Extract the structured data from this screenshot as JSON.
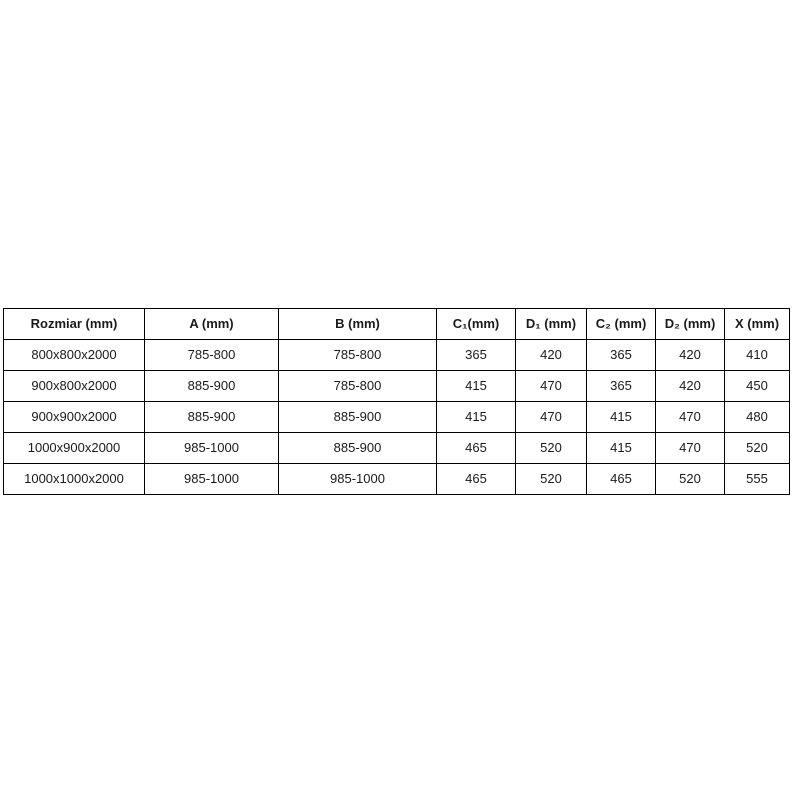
{
  "table": {
    "name": "size-specification-table",
    "headers": [
      "Rozmiar (mm)",
      "A (mm)",
      "B (mm)",
      "C₁(mm)",
      "D₁ (mm)",
      "C₂ (mm)",
      "D₂ (mm)",
      "X (mm)"
    ],
    "rows": [
      [
        "800x800x2000",
        "785-800",
        "785-800",
        "365",
        "420",
        "365",
        "420",
        "410"
      ],
      [
        "900x800x2000",
        "885-900",
        "785-800",
        "415",
        "470",
        "365",
        "420",
        "450"
      ],
      [
        "900x900x2000",
        "885-900",
        "885-900",
        "415",
        "470",
        "415",
        "470",
        "480"
      ],
      [
        "1000x900x2000",
        "985-1000",
        "885-900",
        "465",
        "520",
        "415",
        "470",
        "520"
      ],
      [
        "1000x1000x2000",
        "985-1000",
        "985-1000",
        "465",
        "520",
        "465",
        "520",
        "555"
      ]
    ],
    "border_color": "#000000",
    "text_color": "#1a1a1a",
    "background_color": "#ffffff"
  }
}
